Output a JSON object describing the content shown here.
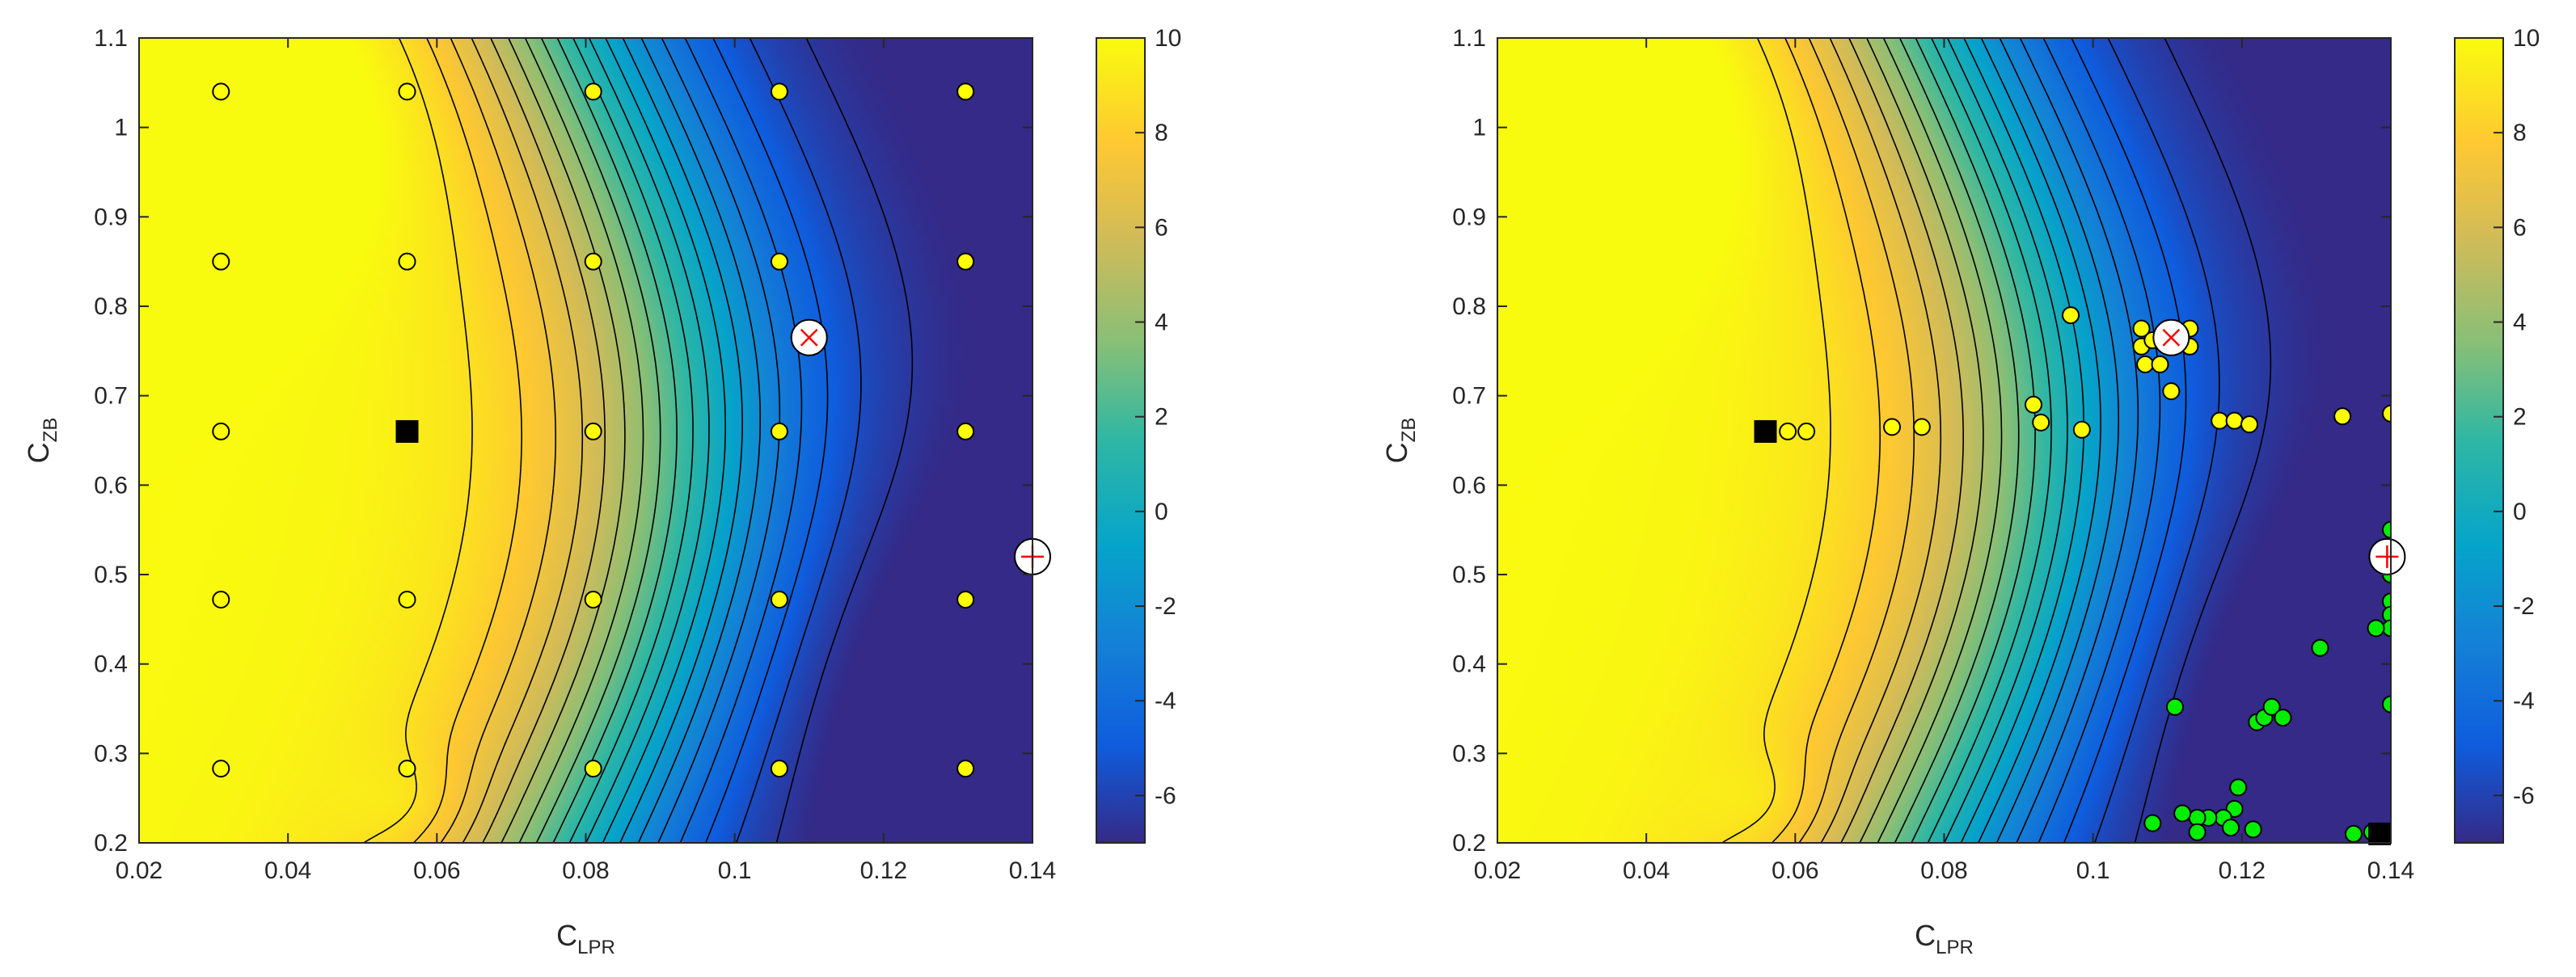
{
  "chart_data": [
    {
      "type": "contour",
      "xlabel": {
        "main": "C",
        "sub": "LPR"
      },
      "ylabel": {
        "main": "C",
        "sub": "ZB"
      },
      "xlim": [
        0.02,
        0.14
      ],
      "ylim": [
        0.2,
        1.1
      ],
      "xticks": [
        "0.02",
        "0.04",
        "0.06",
        "0.08",
        "0.1",
        "0.12",
        "0.14"
      ],
      "yticks": [
        "0.2",
        "0.3",
        "0.4",
        "0.5",
        "0.6",
        "0.7",
        "0.8",
        "0.9",
        "1",
        "1.1"
      ],
      "colorbar": {
        "range": [
          -7,
          10
        ],
        "ticks": [
          "-6",
          "-4",
          "-2",
          "0",
          "2",
          "4",
          "6",
          "8",
          "10"
        ],
        "colormap": "parula"
      },
      "grid": false,
      "series": [
        {
          "marker": "yellow-circle",
          "color": "#ffff00",
          "points": [
            [
              0.031,
              1.04
            ],
            [
              0.056,
              1.04
            ],
            [
              0.081,
              1.04
            ],
            [
              0.106,
              1.04
            ],
            [
              0.131,
              1.04
            ],
            [
              0.031,
              0.85
            ],
            [
              0.056,
              0.85
            ],
            [
              0.081,
              0.85
            ],
            [
              0.106,
              0.85
            ],
            [
              0.131,
              0.85
            ],
            [
              0.031,
              0.66
            ],
            [
              0.081,
              0.66
            ],
            [
              0.106,
              0.66
            ],
            [
              0.131,
              0.66
            ],
            [
              0.031,
              0.472
            ],
            [
              0.056,
              0.472
            ],
            [
              0.081,
              0.472
            ],
            [
              0.106,
              0.472
            ],
            [
              0.131,
              0.472
            ],
            [
              0.031,
              0.283
            ],
            [
              0.056,
              0.283
            ],
            [
              0.081,
              0.283
            ],
            [
              0.106,
              0.283
            ],
            [
              0.131,
              0.283
            ]
          ]
        },
        {
          "marker": "black-square",
          "color": "#000000",
          "points": [
            [
              0.056,
              0.66
            ]
          ]
        },
        {
          "marker": "circle-x",
          "color": "#ff0000",
          "points": [
            [
              0.11,
              0.765
            ]
          ]
        },
        {
          "marker": "circle-plus",
          "color": "#ff0000",
          "points": [
            [
              0.14,
              0.52
            ]
          ]
        }
      ]
    },
    {
      "type": "contour",
      "xlabel": {
        "main": "C",
        "sub": "LPR"
      },
      "ylabel": {
        "main": "C",
        "sub": "ZB"
      },
      "xlim": [
        0.02,
        0.14
      ],
      "ylim": [
        0.2,
        1.1
      ],
      "xticks": [
        "0.02",
        "0.04",
        "0.06",
        "0.08",
        "0.1",
        "0.12",
        "0.14"
      ],
      "yticks": [
        "0.2",
        "0.3",
        "0.4",
        "0.5",
        "0.6",
        "0.7",
        "0.8",
        "0.9",
        "1",
        "1.1"
      ],
      "colorbar": {
        "range": [
          -7,
          10
        ],
        "ticks": [
          "-6",
          "-4",
          "-2",
          "0",
          "2",
          "4",
          "6",
          "8",
          "10"
        ],
        "colormap": "parula"
      },
      "grid": false,
      "series": [
        {
          "marker": "yellow-circle",
          "color": "#ffff00",
          "points": [
            [
              0.059,
              0.66
            ],
            [
              0.0615,
              0.66
            ],
            [
              0.073,
              0.665
            ],
            [
              0.077,
              0.665
            ],
            [
              0.092,
              0.69
            ],
            [
              0.093,
              0.67
            ],
            [
              0.0985,
              0.662
            ],
            [
              0.097,
              0.79
            ],
            [
              0.1065,
              0.775
            ],
            [
              0.1065,
              0.755
            ],
            [
              0.107,
              0.735
            ],
            [
              0.108,
              0.762
            ],
            [
              0.109,
              0.735
            ],
            [
              0.1105,
              0.705
            ],
            [
              0.113,
              0.775
            ],
            [
              0.113,
              0.755
            ],
            [
              0.117,
              0.672
            ],
            [
              0.119,
              0.672
            ],
            [
              0.121,
              0.668
            ],
            [
              0.1335,
              0.677
            ],
            [
              0.14,
              0.68
            ]
          ]
        },
        {
          "marker": "green-circle",
          "color": "#00ee00",
          "points": [
            [
              0.14,
              0.55
            ],
            [
              0.14,
              0.5
            ],
            [
              0.14,
              0.47
            ],
            [
              0.14,
              0.455
            ],
            [
              0.14,
              0.44
            ],
            [
              0.138,
              0.44
            ],
            [
              0.1305,
              0.418
            ],
            [
              0.14,
              0.355
            ],
            [
              0.111,
              0.352
            ],
            [
              0.122,
              0.335
            ],
            [
              0.123,
              0.34
            ],
            [
              0.124,
              0.352
            ],
            [
              0.1255,
              0.34
            ],
            [
              0.1195,
              0.262
            ],
            [
              0.119,
              0.238
            ],
            [
              0.1175,
              0.228
            ],
            [
              0.1155,
              0.228
            ],
            [
              0.114,
              0.228
            ],
            [
              0.112,
              0.233
            ],
            [
              0.108,
              0.222
            ],
            [
              0.114,
              0.212
            ],
            [
              0.1185,
              0.217
            ],
            [
              0.1215,
              0.215
            ],
            [
              0.135,
              0.21
            ],
            [
              0.1375,
              0.212
            ]
          ]
        },
        {
          "marker": "black-square",
          "color": "#000000",
          "points": [
            [
              0.056,
              0.66
            ],
            [
              0.1385,
              0.21
            ]
          ]
        },
        {
          "marker": "circle-x",
          "color": "#ff0000",
          "points": [
            [
              0.1105,
              0.765
            ]
          ]
        },
        {
          "marker": "circle-plus",
          "color": "#ff0000",
          "points": [
            [
              0.1395,
              0.52
            ]
          ]
        }
      ]
    }
  ]
}
